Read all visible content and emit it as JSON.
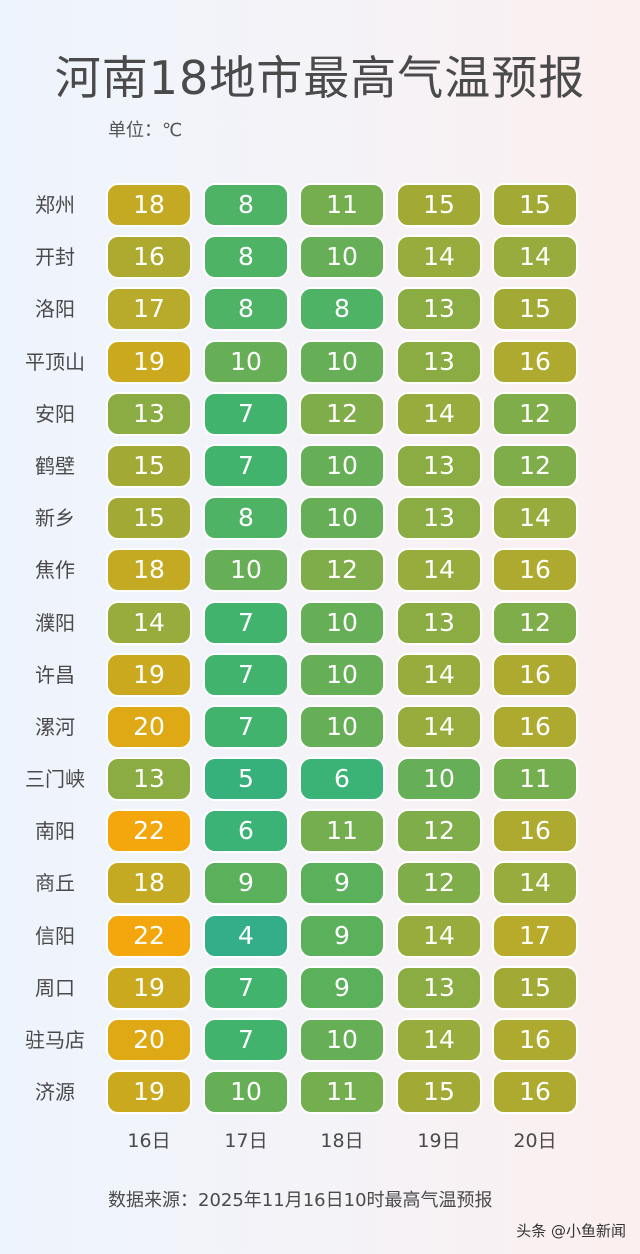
{
  "title": "河南18地市最高气温预报",
  "unit_label": "单位：℃",
  "source_label": "数据来源：2025年11月16日10时最高气温预报",
  "watermark": "头条 @小鱼新闻",
  "days": [
    "16日",
    "17日",
    "18日",
    "19日",
    "20日"
  ],
  "color_scale": {
    "4": "#34ae88",
    "5": "#37b17b",
    "6": "#3bb376",
    "7": "#42b36c",
    "8": "#4fb365",
    "9": "#5bb05c",
    "10": "#66af56",
    "11": "#74ae4f",
    "12": "#7fad4a",
    "13": "#8bac42",
    "14": "#97ac3c",
    "15": "#a2aa35",
    "16": "#adaa2f",
    "17": "#b8aa2a",
    "18": "#c4aa23",
    "19": "#cba91f",
    "20": "#dea914",
    "22": "#f3a70c"
  },
  "chart_data": {
    "type": "heatmap",
    "title": "河南18地市最高气温预报",
    "subtitle": "单位：℃",
    "xlabel": "",
    "ylabel": "",
    "categories": [
      "16日",
      "17日",
      "18日",
      "19日",
      "20日"
    ],
    "rows": [
      "郑州",
      "开封",
      "洛阳",
      "平顶山",
      "安阳",
      "鹤壁",
      "新乡",
      "焦作",
      "濮阳",
      "许昌",
      "漯河",
      "三门峡",
      "南阳",
      "商丘",
      "信阳",
      "周口",
      "驻马店",
      "济源"
    ],
    "values": [
      [
        18,
        8,
        11,
        15,
        15
      ],
      [
        16,
        8,
        10,
        14,
        14
      ],
      [
        17,
        8,
        8,
        13,
        15
      ],
      [
        19,
        10,
        10,
        13,
        16
      ],
      [
        13,
        7,
        12,
        14,
        12
      ],
      [
        15,
        7,
        10,
        13,
        12
      ],
      [
        15,
        8,
        10,
        13,
        14
      ],
      [
        18,
        10,
        12,
        14,
        16
      ],
      [
        14,
        7,
        10,
        13,
        12
      ],
      [
        19,
        7,
        10,
        14,
        16
      ],
      [
        20,
        7,
        10,
        14,
        16
      ],
      [
        13,
        5,
        6,
        10,
        11
      ],
      [
        22,
        6,
        11,
        12,
        16
      ],
      [
        18,
        9,
        9,
        12,
        14
      ],
      [
        22,
        4,
        9,
        14,
        17
      ],
      [
        19,
        7,
        9,
        13,
        15
      ],
      [
        20,
        7,
        10,
        14,
        16
      ],
      [
        19,
        10,
        11,
        15,
        16
      ]
    ],
    "annotations": [
      "数据来源：2025年11月16日10时最高气温预报"
    ],
    "color_range": {
      "low": "#34ae88",
      "high": "#f3a70c"
    }
  }
}
